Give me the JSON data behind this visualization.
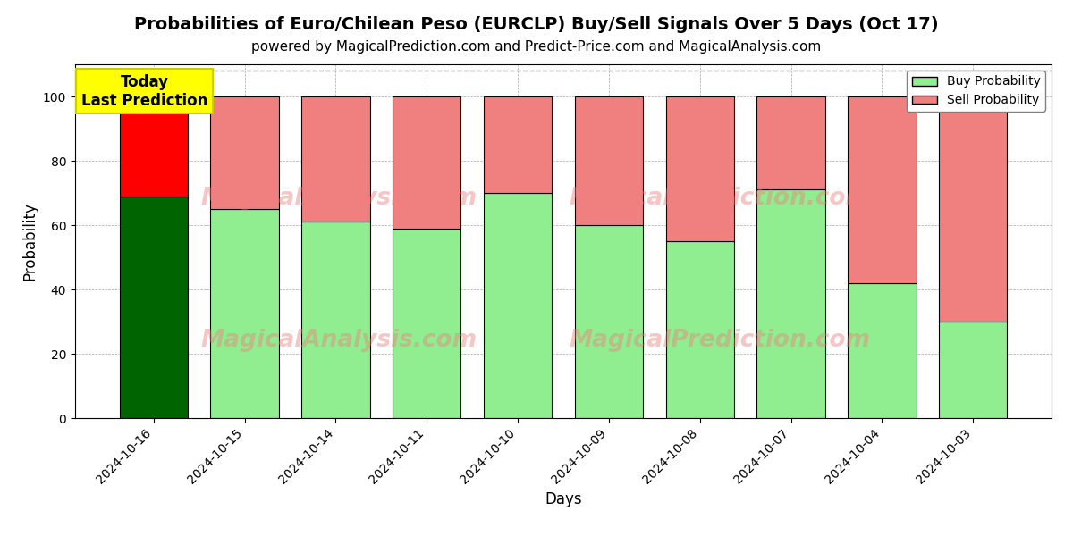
{
  "title": "Probabilities of Euro/Chilean Peso (EURCLP) Buy/Sell Signals Over 5 Days (Oct 17)",
  "subtitle": "powered by MagicalPrediction.com and Predict-Price.com and MagicalAnalysis.com",
  "xlabel": "Days",
  "ylabel": "Probability",
  "dates": [
    "2024-10-16",
    "2024-10-15",
    "2024-10-14",
    "2024-10-11",
    "2024-10-10",
    "2024-10-09",
    "2024-10-08",
    "2024-10-07",
    "2024-10-04",
    "2024-10-03"
  ],
  "buy_values": [
    69,
    65,
    61,
    59,
    70,
    60,
    55,
    71,
    42,
    30
  ],
  "sell_values": [
    31,
    35,
    39,
    41,
    30,
    40,
    45,
    29,
    58,
    70
  ],
  "buy_colors_today": "#006400",
  "sell_colors_today": "#ff0000",
  "buy_colors_other": "#90ee90",
  "sell_colors_other": "#f08080",
  "bar_edgecolor": "#000000",
  "bar_linewidth": 0.8,
  "ylim": [
    0,
    110
  ],
  "dashed_line_y": 108,
  "grid_color": "#aaaaaa",
  "grid_linestyle": "--",
  "grid_linewidth": 0.5,
  "watermark_texts": [
    "MagicalAnalysis.com",
    "MagicalPrediction.com"
  ],
  "watermark_color": "#f08080",
  "watermark_alpha": 0.45,
  "today_box_color": "#ffff00",
  "today_box_text": "Today\nLast Prediction",
  "legend_buy_label": "Buy Probability",
  "legend_sell_label": "Sell Probability",
  "title_fontsize": 14,
  "subtitle_fontsize": 11,
  "label_fontsize": 12,
  "tick_fontsize": 10,
  "legend_fontsize": 10,
  "bar_width": 0.75
}
